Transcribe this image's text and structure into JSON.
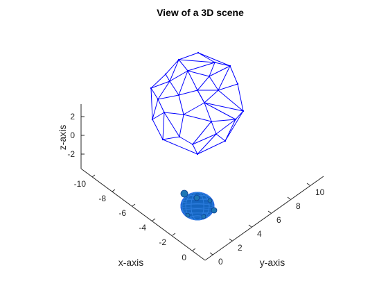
{
  "chart_data": {
    "type": "3d-scene",
    "title": "View of a 3D scene",
    "xlabel": "x-axis",
    "ylabel": "y-axis",
    "zlabel": "z-axis",
    "x_ticks": [
      "-10",
      "-8",
      "-6",
      "-4",
      "-2",
      "0"
    ],
    "y_ticks": [
      "0",
      "2",
      "4",
      "6",
      "8",
      "10"
    ],
    "z_ticks": [
      "2",
      "0",
      "-2"
    ],
    "xlim": [
      -11,
      1
    ],
    "ylim": [
      -1,
      12
    ],
    "zlim": [
      -3.5,
      3.5
    ],
    "grid": false,
    "objects": [
      {
        "name": "wireframe polyhedron",
        "style": "wireframe",
        "color": "#0000ff"
      },
      {
        "name": "filled cluster",
        "style": "filled sphere mesh",
        "color": "#0000ff",
        "marker_color": "#1f77b4"
      }
    ]
  },
  "colors": {
    "background": "#ffffff",
    "axis": "#262626",
    "wireframe": "#0000ff",
    "cluster_fill": "#1565c0",
    "cluster_marker": "#1f77b4"
  }
}
